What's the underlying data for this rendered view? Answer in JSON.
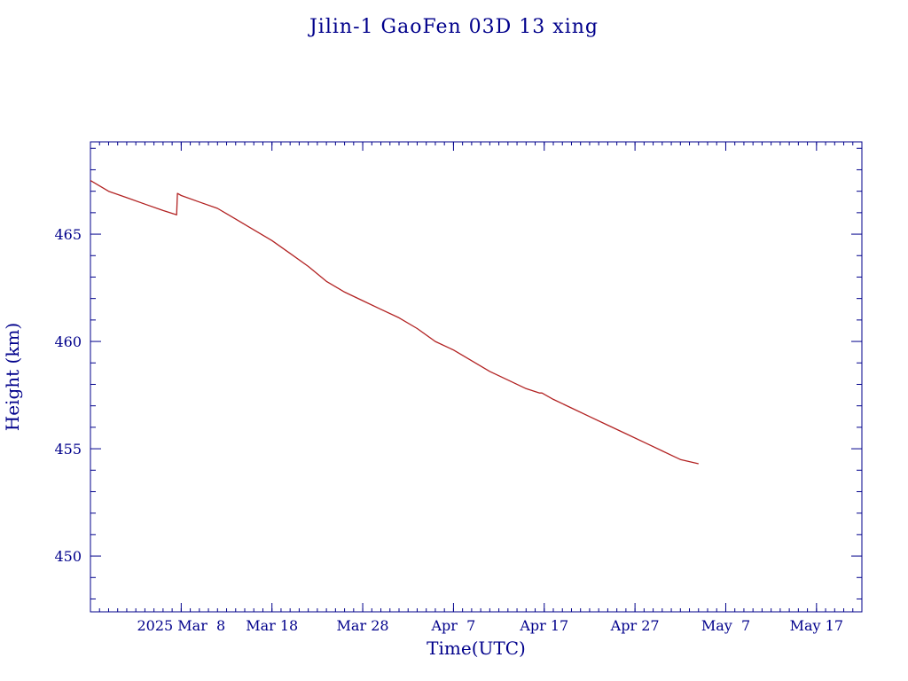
{
  "chart_data": {
    "type": "line",
    "title": "Jilin-1 GaoFen 03D 13 xing",
    "xlabel": "Time(UTC)",
    "ylabel": "Height (km)",
    "x_tick_labels": [
      "2025 Mar  8",
      "Mar 18",
      "Mar 28",
      "Apr  7",
      "Apr 17",
      "Apr 27",
      "May  7",
      "May 17"
    ],
    "x_ticks": [
      "2025-03-08",
      "2025-03-18",
      "2025-03-28",
      "2025-04-07",
      "2025-04-17",
      "2025-04-27",
      "2025-05-07",
      "2025-05-17"
    ],
    "xlim": [
      "2025-02-26",
      "2025-05-22"
    ],
    "y_ticks": [
      450,
      455,
      460,
      465
    ],
    "ylim": [
      447.4,
      469.3
    ],
    "grid": false,
    "line_color": "#b22222",
    "axis_color": "#00008b",
    "series": [
      {
        "x": [
          "2025-02-26",
          "2025-02-28",
          "2025-03-02",
          "2025-03-04",
          "2025-03-06",
          "2025-03-07 12:00",
          "2025-03-07 14:00",
          "2025-03-08",
          "2025-03-10",
          "2025-03-12",
          "2025-03-14",
          "2025-03-16",
          "2025-03-18",
          "2025-03-20",
          "2025-03-22",
          "2025-03-24",
          "2025-03-26",
          "2025-03-28",
          "2025-03-30",
          "2025-04-01",
          "2025-04-03",
          "2025-04-05",
          "2025-04-07",
          "2025-04-09",
          "2025-04-11",
          "2025-04-13",
          "2025-04-15",
          "2025-04-16 12:00",
          "2025-04-16 18:00",
          "2025-04-18",
          "2025-04-20",
          "2025-04-22",
          "2025-04-24",
          "2025-04-26",
          "2025-04-28",
          "2025-04-30",
          "2025-05-02",
          "2025-05-04"
        ],
        "y": [
          467.5,
          467.0,
          466.7,
          466.4,
          466.1,
          465.9,
          466.9,
          466.8,
          466.5,
          466.2,
          465.7,
          465.2,
          464.7,
          464.1,
          463.5,
          462.8,
          462.3,
          461.9,
          461.5,
          461.1,
          460.6,
          460.0,
          459.6,
          459.1,
          458.6,
          458.2,
          457.8,
          457.6,
          457.6,
          457.3,
          456.9,
          456.5,
          456.1,
          455.7,
          455.3,
          454.9,
          454.5,
          454.3
        ]
      }
    ]
  }
}
